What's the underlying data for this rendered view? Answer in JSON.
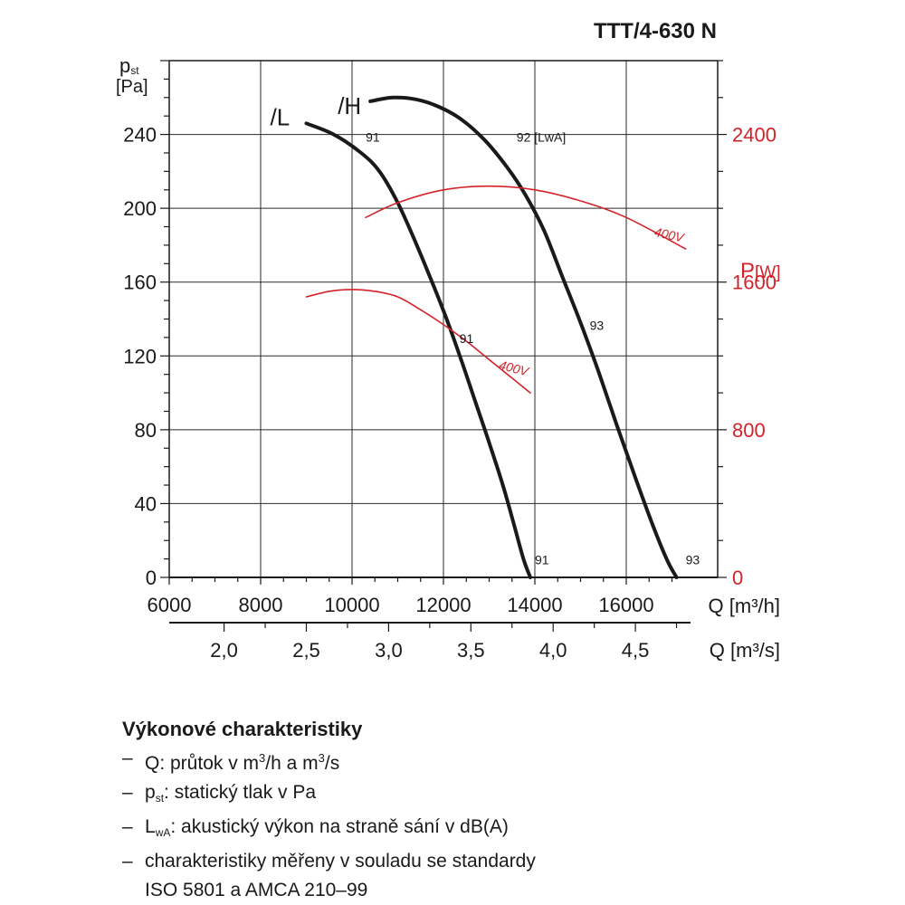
{
  "chart_data": {
    "type": "line",
    "title": "TTT/4-630 N",
    "ylabel_symbol": "p",
    "ylabel_subscript": "st",
    "ylabel_unit": "[Pa]",
    "y2label_symbol": "P",
    "y2label_unit": "[W]",
    "xlabel": "Q [m³/h]",
    "x2label": "Q [m³/s]",
    "xlim": [
      6000,
      18000
    ],
    "ylim": [
      0,
      280
    ],
    "y2lim": [
      0,
      2800
    ],
    "x_ticks": [
      "6000",
      "8000",
      "10000",
      "12000",
      "14000",
      "16000"
    ],
    "x2_ticks": [
      "2,0",
      "2,5",
      "3,0",
      "3,5",
      "4,0",
      "4,5"
    ],
    "y_ticks": [
      "0",
      "40",
      "80",
      "120",
      "160",
      "200",
      "240"
    ],
    "y2_ticks": [
      "0",
      "800",
      "1600",
      "2400"
    ],
    "grid": true,
    "colors": {
      "pressure": "#1a1a1a",
      "power": "#d2232a"
    },
    "series": [
      {
        "name": "/L",
        "axis": "left",
        "points": [
          [
            9000,
            246
          ],
          [
            9600,
            240
          ],
          [
            10200,
            230
          ],
          [
            10600,
            220
          ],
          [
            11000,
            203
          ],
          [
            11400,
            181
          ],
          [
            11800,
            157
          ],
          [
            12100,
            138
          ],
          [
            12400,
            117
          ],
          [
            12700,
            95
          ],
          [
            13000,
            73
          ],
          [
            13300,
            50
          ],
          [
            13550,
            28
          ],
          [
            13750,
            10
          ],
          [
            13900,
            0
          ]
        ],
        "annotations": [
          {
            "x": 10300,
            "y": 236,
            "text": "91"
          },
          {
            "x": 12350,
            "y": 127,
            "text": "91"
          },
          {
            "x": 14000,
            "y": 7,
            "text": "91"
          }
        ]
      },
      {
        "name": "/H",
        "axis": "left",
        "points": [
          [
            10400,
            258
          ],
          [
            10900,
            260
          ],
          [
            11400,
            259
          ],
          [
            11900,
            255
          ],
          [
            12400,
            248
          ],
          [
            12900,
            237
          ],
          [
            13400,
            222
          ],
          [
            13800,
            207
          ],
          [
            14200,
            188
          ],
          [
            14600,
            163
          ],
          [
            15000,
            138
          ],
          [
            15400,
            111
          ],
          [
            15800,
            82
          ],
          [
            16200,
            54
          ],
          [
            16600,
            27
          ],
          [
            16900,
            9
          ],
          [
            17100,
            0
          ]
        ],
        "annotations": [
          {
            "x": 13600,
            "y": 236,
            "text": "92 [LwA]"
          },
          {
            "x": 15200,
            "y": 134,
            "text": "93"
          },
          {
            "x": 17300,
            "y": 7,
            "text": "93"
          }
        ]
      },
      {
        "name": "400V",
        "axis": "right",
        "points": [
          [
            9000,
            1520
          ],
          [
            9500,
            1550
          ],
          [
            10000,
            1560
          ],
          [
            10500,
            1550
          ],
          [
            11000,
            1520
          ],
          [
            11500,
            1450
          ],
          [
            12000,
            1370
          ],
          [
            12500,
            1280
          ],
          [
            13000,
            1180
          ],
          [
            13500,
            1080
          ],
          [
            13900,
            1000
          ]
        ],
        "label": {
          "x": 13200,
          "y": 1130,
          "text": "400V",
          "angle": 14
        }
      },
      {
        "name": "400V",
        "axis": "right",
        "points": [
          [
            10300,
            1950
          ],
          [
            11000,
            2030
          ],
          [
            12000,
            2100
          ],
          [
            13000,
            2120
          ],
          [
            14000,
            2100
          ],
          [
            15000,
            2040
          ],
          [
            16000,
            1950
          ],
          [
            17300,
            1780
          ]
        ],
        "label": {
          "x": 16600,
          "y": 1850,
          "text": "400V",
          "angle": 12
        }
      }
    ]
  },
  "description": {
    "heading": "Výkonové charakteristiky",
    "items": [
      {
        "pre": "Q: průtok v m",
        "sup1": "3",
        "mid": "/h a m",
        "sup2": "3",
        "post": "/s"
      },
      {
        "pre": "p",
        "sub": "st",
        "post": ": statický tlak v Pa"
      },
      {
        "pre": "L",
        "sub": "wA",
        "post": ": akustický výkon na straně sání v dB(A)"
      },
      {
        "text": "charakteristiky měřeny v souladu se standardy",
        "cont": "ISO 5801 a AMCA 210–99"
      }
    ]
  }
}
